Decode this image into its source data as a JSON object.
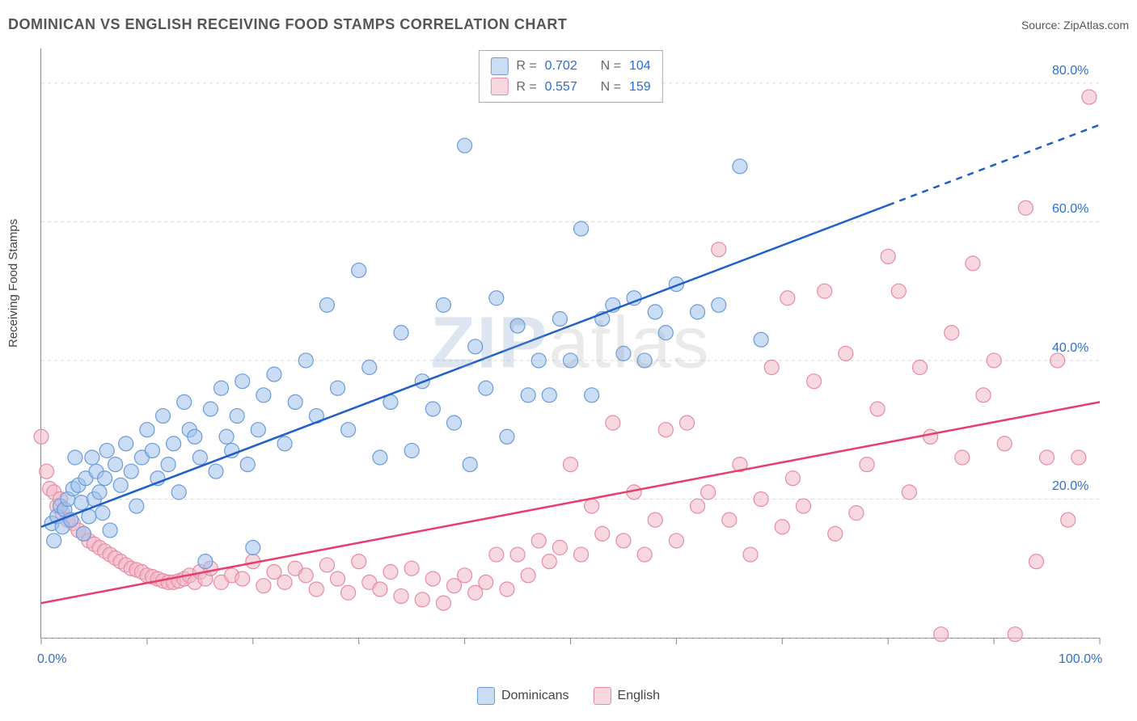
{
  "title": "DOMINICAN VS ENGLISH RECEIVING FOOD STAMPS CORRELATION CHART",
  "source_label": "Source:",
  "source_name": "ZipAtlas.com",
  "watermark": {
    "z": "Z",
    "ip": "IP",
    "atlas": "atlas"
  },
  "ylabel": "Receiving Food Stamps",
  "axis": {
    "xmin": 0,
    "xmax": 100,
    "ymin": 0,
    "ymax": 85,
    "x_ticks": [
      0,
      10,
      20,
      30,
      40,
      50,
      60,
      70,
      80,
      90,
      100
    ],
    "x_tick_labels": {
      "0": "0.0%",
      "100": "100.0%"
    },
    "y_gridlines": [
      0,
      20,
      40,
      60,
      80
    ],
    "y_tick_labels": {
      "20": "20.0%",
      "40": "40.0%",
      "60": "60.0%",
      "80": "80.0%"
    },
    "grid_color": "#d8d8d8",
    "tick_color": "#888",
    "axis_label_color": "#2b6fd6",
    "axis_fontsize": 16
  },
  "series": {
    "dominicans": {
      "label": "Dominicans",
      "marker_color": "#9fc1ec",
      "marker_fill": "rgba(159,193,236,0.55)",
      "marker_stroke": "#6b9bd8",
      "line_color": "#1f5fc9",
      "line_width": 2.5,
      "marker_radius": 9,
      "dash_after_x": 80,
      "R": "0.702",
      "N": "104",
      "regression": {
        "x1": 0,
        "y1": 16,
        "x2": 100,
        "y2": 74
      },
      "points": [
        [
          1.0,
          16.5
        ],
        [
          1.2,
          14.0
        ],
        [
          1.5,
          17.5
        ],
        [
          1.8,
          19.0
        ],
        [
          2.0,
          16.0
        ],
        [
          2.2,
          18.5
        ],
        [
          2.5,
          20.0
        ],
        [
          2.8,
          17.0
        ],
        [
          3.0,
          21.5
        ],
        [
          3.2,
          26.0
        ],
        [
          3.5,
          22.0
        ],
        [
          3.8,
          19.5
        ],
        [
          4.0,
          15.0
        ],
        [
          4.2,
          23.0
        ],
        [
          4.5,
          17.5
        ],
        [
          4.8,
          26.0
        ],
        [
          5.0,
          20.0
        ],
        [
          5.2,
          24.0
        ],
        [
          5.5,
          21.0
        ],
        [
          5.8,
          18.0
        ],
        [
          6.0,
          23.0
        ],
        [
          6.2,
          27.0
        ],
        [
          6.5,
          15.5
        ],
        [
          7.0,
          25.0
        ],
        [
          7.5,
          22.0
        ],
        [
          8.0,
          28.0
        ],
        [
          8.5,
          24.0
        ],
        [
          9.0,
          19.0
        ],
        [
          9.5,
          26.0
        ],
        [
          10.0,
          30.0
        ],
        [
          10.5,
          27.0
        ],
        [
          11.0,
          23.0
        ],
        [
          11.5,
          32.0
        ],
        [
          12.0,
          25.0
        ],
        [
          12.5,
          28.0
        ],
        [
          13.0,
          21.0
        ],
        [
          13.5,
          34.0
        ],
        [
          14.0,
          30.0
        ],
        [
          14.5,
          29.0
        ],
        [
          15.0,
          26.0
        ],
        [
          15.5,
          11.0
        ],
        [
          16.0,
          33.0
        ],
        [
          16.5,
          24.0
        ],
        [
          17.0,
          36.0
        ],
        [
          17.5,
          29.0
        ],
        [
          18.0,
          27.0
        ],
        [
          18.5,
          32.0
        ],
        [
          19.0,
          37.0
        ],
        [
          19.5,
          25.0
        ],
        [
          20.0,
          13.0
        ],
        [
          20.5,
          30.0
        ],
        [
          21.0,
          35.0
        ],
        [
          22.0,
          38.0
        ],
        [
          23.0,
          28.0
        ],
        [
          24.0,
          34.0
        ],
        [
          25.0,
          40.0
        ],
        [
          26.0,
          32.0
        ],
        [
          27.0,
          48.0
        ],
        [
          28.0,
          36.0
        ],
        [
          29.0,
          30.0
        ],
        [
          30.0,
          53.0
        ],
        [
          31.0,
          39.0
        ],
        [
          32.0,
          26.0
        ],
        [
          33.0,
          34.0
        ],
        [
          34.0,
          44.0
        ],
        [
          35.0,
          27.0
        ],
        [
          36.0,
          37.0
        ],
        [
          37.0,
          33.0
        ],
        [
          38.0,
          48.0
        ],
        [
          39.0,
          31.0
        ],
        [
          40.0,
          71.0
        ],
        [
          40.5,
          25.0
        ],
        [
          41.0,
          42.0
        ],
        [
          42.0,
          36.0
        ],
        [
          43.0,
          49.0
        ],
        [
          44.0,
          29.0
        ],
        [
          45.0,
          45.0
        ],
        [
          46.0,
          35.0
        ],
        [
          47.0,
          40.0
        ],
        [
          48.0,
          35.0
        ],
        [
          49.0,
          46.0
        ],
        [
          50.0,
          40.0
        ],
        [
          51.0,
          59.0
        ],
        [
          52.0,
          35.0
        ],
        [
          53.0,
          46.0
        ],
        [
          54.0,
          48.0
        ],
        [
          55.0,
          41.0
        ],
        [
          56.0,
          49.0
        ],
        [
          57.0,
          40.0
        ],
        [
          58.0,
          47.0
        ],
        [
          59.0,
          44.0
        ],
        [
          60.0,
          51.0
        ],
        [
          62.0,
          47.0
        ],
        [
          64.0,
          48.0
        ],
        [
          66.0,
          68.0
        ],
        [
          68.0,
          43.0
        ]
      ]
    },
    "english": {
      "label": "English",
      "marker_color": "#f2b8c6",
      "marker_fill": "rgba(242,184,198,0.55)",
      "marker_stroke": "#e78ba5",
      "line_color": "#e73e6d",
      "line_width": 2.5,
      "marker_radius": 9,
      "dash_after_x": 100,
      "R": "0.557",
      "N": "159",
      "regression": {
        "x1": 0,
        "y1": 5,
        "x2": 100,
        "y2": 34
      },
      "points": [
        [
          0.0,
          29.0
        ],
        [
          0.5,
          24.0
        ],
        [
          0.8,
          21.5
        ],
        [
          1.2,
          21.0
        ],
        [
          1.5,
          19.0
        ],
        [
          1.8,
          20.0
        ],
        [
          2.0,
          18.0
        ],
        [
          2.5,
          17.0
        ],
        [
          3.0,
          16.5
        ],
        [
          3.5,
          15.5
        ],
        [
          4.0,
          15.0
        ],
        [
          4.5,
          14.0
        ],
        [
          5.0,
          13.5
        ],
        [
          5.5,
          13.0
        ],
        [
          6.0,
          12.5
        ],
        [
          6.5,
          12.0
        ],
        [
          7.0,
          11.5
        ],
        [
          7.5,
          11.0
        ],
        [
          8.0,
          10.5
        ],
        [
          8.5,
          10.0
        ],
        [
          9.0,
          9.8
        ],
        [
          9.5,
          9.5
        ],
        [
          10.0,
          9.0
        ],
        [
          10.5,
          8.8
        ],
        [
          11.0,
          8.5
        ],
        [
          11.5,
          8.2
        ],
        [
          12.0,
          8.0
        ],
        [
          12.5,
          8.0
        ],
        [
          13.0,
          8.2
        ],
        [
          13.5,
          8.5
        ],
        [
          14.0,
          9.0
        ],
        [
          14.5,
          8.0
        ],
        [
          15.0,
          9.5
        ],
        [
          15.5,
          8.5
        ],
        [
          16.0,
          10.0
        ],
        [
          17.0,
          8.0
        ],
        [
          18.0,
          9.0
        ],
        [
          19.0,
          8.5
        ],
        [
          20.0,
          11.0
        ],
        [
          21.0,
          7.5
        ],
        [
          22.0,
          9.5
        ],
        [
          23.0,
          8.0
        ],
        [
          24.0,
          10.0
        ],
        [
          25.0,
          9.0
        ],
        [
          26.0,
          7.0
        ],
        [
          27.0,
          10.5
        ],
        [
          28.0,
          8.5
        ],
        [
          29.0,
          6.5
        ],
        [
          30.0,
          11.0
        ],
        [
          31.0,
          8.0
        ],
        [
          32.0,
          7.0
        ],
        [
          33.0,
          9.5
        ],
        [
          34.0,
          6.0
        ],
        [
          35.0,
          10.0
        ],
        [
          36.0,
          5.5
        ],
        [
          37.0,
          8.5
        ],
        [
          38.0,
          5.0
        ],
        [
          39.0,
          7.5
        ],
        [
          40.0,
          9.0
        ],
        [
          41.0,
          6.5
        ],
        [
          42.0,
          8.0
        ],
        [
          43.0,
          12.0
        ],
        [
          44.0,
          7.0
        ],
        [
          45.0,
          12.0
        ],
        [
          46.0,
          9.0
        ],
        [
          47.0,
          14.0
        ],
        [
          48.0,
          11.0
        ],
        [
          49.0,
          13.0
        ],
        [
          50.0,
          25.0
        ],
        [
          51.0,
          12.0
        ],
        [
          52.0,
          19.0
        ],
        [
          53.0,
          15.0
        ],
        [
          54.0,
          31.0
        ],
        [
          55.0,
          14.0
        ],
        [
          56.0,
          21.0
        ],
        [
          57.0,
          12.0
        ],
        [
          58.0,
          17.0
        ],
        [
          59.0,
          30.0
        ],
        [
          60.0,
          14.0
        ],
        [
          61.0,
          31.0
        ],
        [
          62.0,
          19.0
        ],
        [
          63.0,
          21.0
        ],
        [
          64.0,
          56.0
        ],
        [
          65.0,
          17.0
        ],
        [
          66.0,
          25.0
        ],
        [
          67.0,
          12.0
        ],
        [
          68.0,
          20.0
        ],
        [
          69.0,
          39.0
        ],
        [
          70.0,
          16.0
        ],
        [
          70.5,
          49.0
        ],
        [
          71.0,
          23.0
        ],
        [
          72.0,
          19.0
        ],
        [
          73.0,
          37.0
        ],
        [
          74.0,
          50.0
        ],
        [
          75.0,
          15.0
        ],
        [
          76.0,
          41.0
        ],
        [
          77.0,
          18.0
        ],
        [
          78.0,
          25.0
        ],
        [
          79.0,
          33.0
        ],
        [
          80.0,
          55.0
        ],
        [
          81.0,
          50.0
        ],
        [
          82.0,
          21.0
        ],
        [
          83.0,
          39.0
        ],
        [
          84.0,
          29.0
        ],
        [
          85.0,
          0.5
        ],
        [
          86.0,
          44.0
        ],
        [
          87.0,
          26.0
        ],
        [
          88.0,
          54.0
        ],
        [
          89.0,
          35.0
        ],
        [
          90.0,
          40.0
        ],
        [
          91.0,
          28.0
        ],
        [
          92.0,
          0.5
        ],
        [
          93.0,
          62.0
        ],
        [
          94.0,
          11.0
        ],
        [
          95.0,
          26.0
        ],
        [
          96.0,
          40.0
        ],
        [
          97.0,
          17.0
        ],
        [
          98.0,
          26.0
        ],
        [
          99.0,
          78.0
        ]
      ]
    }
  },
  "legend_top": {
    "R_label": "R =",
    "N_label": "N ="
  },
  "legend_bottom_order": [
    "dominicans",
    "english"
  ]
}
